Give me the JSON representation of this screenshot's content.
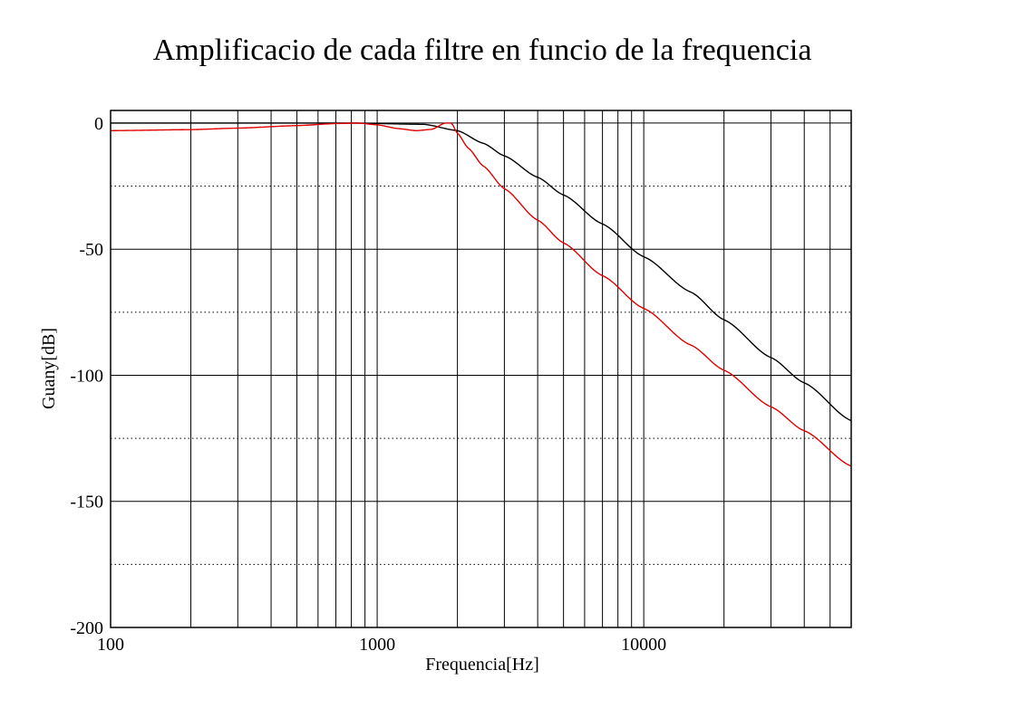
{
  "chart_data": {
    "type": "line",
    "title": "Amplificacio de cada filtre en funcio de la frequencia",
    "xlabel": "Frequencia[Hz]",
    "ylabel": "Guany[dB]",
    "x_scale": "log",
    "xlim": [
      100,
      60000
    ],
    "ylim": [
      -200,
      5
    ],
    "x_ticks": [
      100,
      1000,
      10000
    ],
    "x_tick_labels": [
      "100",
      "1000",
      "10000"
    ],
    "y_ticks": [
      0,
      -50,
      -100,
      -150,
      -200
    ],
    "y_tick_labels": [
      "0",
      "-50",
      "-100",
      "-150",
      "-200"
    ],
    "y_minor_ticks": [
      -25,
      -75,
      -125,
      -175
    ],
    "grid": true,
    "series": [
      {
        "color": "#000000",
        "x": [
          100,
          300,
          800,
          1500,
          2000,
          2500,
          3000,
          4000,
          5000,
          7000,
          10000,
          15000,
          20000,
          30000,
          40000,
          60000
        ],
        "y": [
          0,
          0,
          0,
          -0.5,
          -3,
          -8,
          -13,
          -21.5,
          -28.5,
          -40,
          -53,
          -67,
          -78,
          -93,
          -103,
          -118
        ]
      },
      {
        "color": "#e00000",
        "x": [
          100,
          200,
          300,
          500,
          700,
          850,
          1000,
          1200,
          1400,
          1600,
          1800,
          1900,
          2000,
          2200,
          2500,
          3000,
          4000,
          5000,
          7000,
          10000,
          15000,
          20000,
          30000,
          40000,
          60000
        ],
        "y": [
          -3,
          -2.6,
          -2,
          -1,
          -0.2,
          0,
          -0.7,
          -2.2,
          -3,
          -2.5,
          0,
          0,
          -4,
          -10,
          -17,
          -26,
          -38.5,
          -47.5,
          -60.5,
          -73.5,
          -88,
          -98,
          -112.5,
          -122,
          -136
        ]
      }
    ]
  }
}
